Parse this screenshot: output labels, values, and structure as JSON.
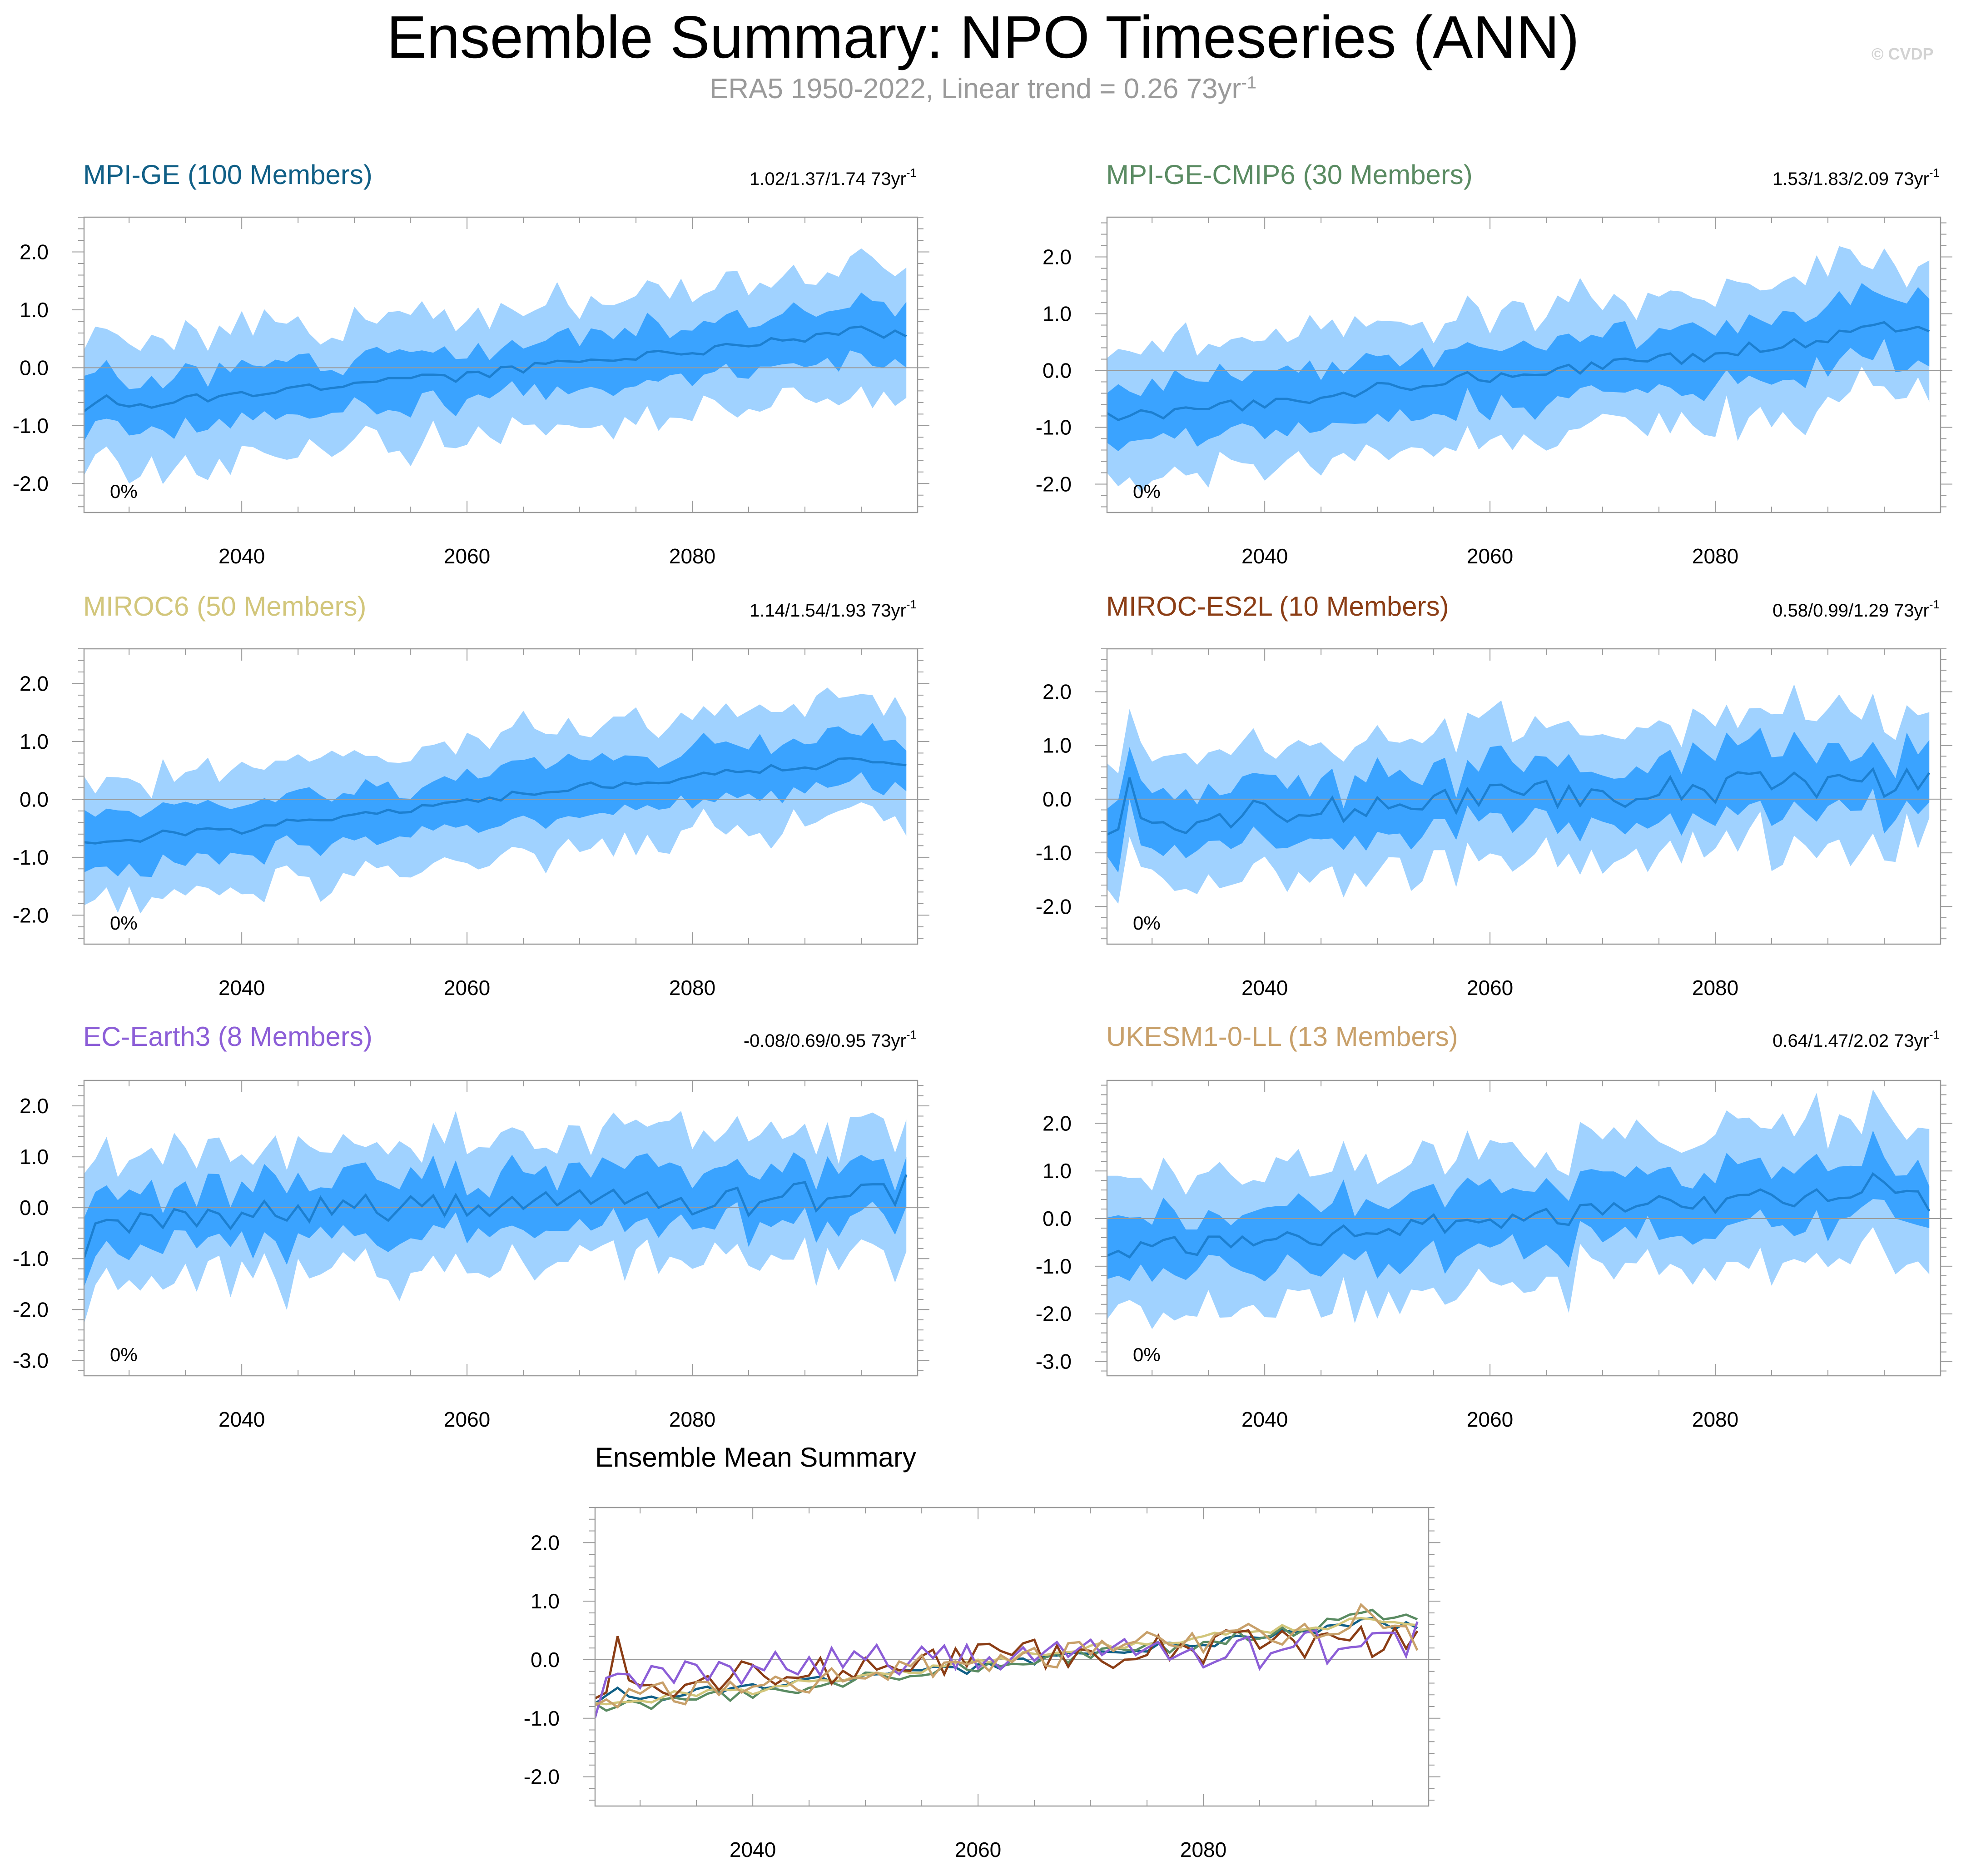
{
  "title": "Ensemble Summary: NPO Timeseries (ANN)",
  "subtitle": {
    "text": "ERA5 1950-2022, Linear trend = 0.26 73yr",
    "sup": "-1"
  },
  "watermark": "© CVDP",
  "colors": {
    "band_outer": "#a0d2ff",
    "band_inner": "#3aa3ff",
    "mean_line": "#1c7fd0",
    "zero_line": "#9a9a9a",
    "frame": "#9a9a9a"
  },
  "chart_data": [
    {
      "type": "area",
      "title": "MPI-GE (100 Members)",
      "title_color": "#105f86",
      "trend": "1.02/1.37/1.74 73yr",
      "trend_sup": "-1",
      "percent_label": "0%",
      "x_start": 2026,
      "x_end": 2099,
      "xlim": [
        2026,
        2100
      ],
      "ylim": [
        -2.5,
        2.6
      ],
      "x_ticks": [
        2040,
        2060,
        2080
      ],
      "y_ticks": [
        2.0,
        1.0,
        0.0,
        -1.0,
        -2.0
      ],
      "y_tick_labels": [
        "2.0",
        "1.0",
        "0.0",
        "-1.0",
        "-2.0"
      ],
      "mean_keys": [
        [
          2026,
          -0.7
        ],
        [
          2028,
          -0.5
        ],
        [
          2030,
          -0.65
        ],
        [
          2035,
          -0.55
        ],
        [
          2040,
          -0.45
        ],
        [
          2045,
          -0.35
        ],
        [
          2050,
          -0.25
        ],
        [
          2055,
          -0.2
        ],
        [
          2060,
          -0.15
        ],
        [
          2065,
          0.0
        ],
        [
          2070,
          0.1
        ],
        [
          2075,
          0.2
        ],
        [
          2080,
          0.25
        ],
        [
          2085,
          0.4
        ],
        [
          2090,
          0.5
        ],
        [
          2095,
          0.65
        ],
        [
          2099,
          0.55
        ]
      ],
      "noise": 0.08,
      "inner_half": 0.45,
      "outer_half": 1.1,
      "band_noise": 0.25,
      "seed": 3
    },
    {
      "type": "area",
      "title": "MPI-GE-CMIP6 (30 Members)",
      "title_color": "#5a8b62",
      "trend": "1.53/1.83/2.09 73yr",
      "trend_sup": "-1",
      "percent_label": "0%",
      "x_start": 2026,
      "x_end": 2099,
      "xlim": [
        2026,
        2100
      ],
      "ylim": [
        -2.5,
        2.7
      ],
      "x_ticks": [
        2040,
        2060,
        2080
      ],
      "y_ticks": [
        2.0,
        1.0,
        0.0,
        -1.0,
        -2.0
      ],
      "y_tick_labels": [
        "2.0",
        "1.0",
        "0.0",
        "-1.0",
        "-2.0"
      ],
      "mean_keys": [
        [
          2026,
          -0.85
        ],
        [
          2030,
          -0.75
        ],
        [
          2035,
          -0.65
        ],
        [
          2040,
          -0.55
        ],
        [
          2045,
          -0.45
        ],
        [
          2050,
          -0.3
        ],
        [
          2055,
          -0.2
        ],
        [
          2060,
          -0.1
        ],
        [
          2065,
          0.0
        ],
        [
          2070,
          0.1
        ],
        [
          2075,
          0.2
        ],
        [
          2080,
          0.3
        ],
        [
          2085,
          0.45
        ],
        [
          2090,
          0.55
        ],
        [
          2095,
          0.8
        ],
        [
          2099,
          0.7
        ]
      ],
      "noise": 0.12,
      "inner_half": 0.5,
      "outer_half": 1.15,
      "band_noise": 0.3,
      "seed": 11
    },
    {
      "type": "area",
      "title": "MIROC6 (50 Members)",
      "title_color": "#d2c67b",
      "trend": "1.14/1.54/1.93 73yr",
      "trend_sup": "-1",
      "percent_label": "0%",
      "x_start": 2026,
      "x_end": 2099,
      "xlim": [
        2026,
        2100
      ],
      "ylim": [
        -2.5,
        2.6
      ],
      "x_ticks": [
        2040,
        2060,
        2080
      ],
      "y_ticks": [
        2.0,
        1.0,
        0.0,
        -1.0,
        -2.0
      ],
      "y_tick_labels": [
        "2.0",
        "1.0",
        "0.0",
        "-1.0",
        "-2.0"
      ],
      "mean_keys": [
        [
          2026,
          -0.8
        ],
        [
          2030,
          -0.75
        ],
        [
          2033,
          -0.6
        ],
        [
          2040,
          -0.55
        ],
        [
          2045,
          -0.35
        ],
        [
          2050,
          -0.25
        ],
        [
          2055,
          -0.15
        ],
        [
          2060,
          -0.05
        ],
        [
          2065,
          0.1
        ],
        [
          2070,
          0.2
        ],
        [
          2075,
          0.3
        ],
        [
          2080,
          0.4
        ],
        [
          2085,
          0.5
        ],
        [
          2090,
          0.55
        ],
        [
          2095,
          0.7
        ],
        [
          2099,
          0.6
        ]
      ],
      "noise": 0.07,
      "inner_half": 0.45,
      "outer_half": 1.05,
      "band_noise": 0.25,
      "seed": 23
    },
    {
      "type": "area",
      "title": "MIROC-ES2L (10 Members)",
      "title_color": "#8b3d15",
      "trend": "0.58/0.99/1.29 73yr",
      "trend_sup": "-1",
      "percent_label": "0%",
      "x_start": 2026,
      "x_end": 2099,
      "xlim": [
        2026,
        2100
      ],
      "ylim": [
        -2.7,
        2.8
      ],
      "x_ticks": [
        2040,
        2060,
        2080
      ],
      "y_ticks": [
        2.0,
        1.0,
        0.0,
        -1.0,
        -2.0
      ],
      "y_tick_labels": [
        "2.0",
        "1.0",
        "0.0",
        "-1.0",
        "-2.0"
      ],
      "mean_keys": [
        [
          2026,
          -0.95
        ],
        [
          2028,
          0.2
        ],
        [
          2030,
          -0.6
        ],
        [
          2035,
          -0.4
        ],
        [
          2040,
          -0.3
        ],
        [
          2045,
          -0.2
        ],
        [
          2050,
          -0.15
        ],
        [
          2055,
          -0.1
        ],
        [
          2060,
          0.0
        ],
        [
          2065,
          0.05
        ],
        [
          2070,
          0.1
        ],
        [
          2075,
          0.15
        ],
        [
          2080,
          0.2
        ],
        [
          2085,
          0.3
        ],
        [
          2090,
          0.25
        ],
        [
          2095,
          0.3
        ],
        [
          2099,
          0.2
        ]
      ],
      "noise": 0.3,
      "inner_half": 0.55,
      "outer_half": 1.2,
      "band_noise": 0.35,
      "seed": 41
    },
    {
      "type": "area",
      "title": "EC-Earth3 (8 Members)",
      "title_color": "#8c5ed7",
      "trend": "-0.08/0.69/0.95 73yr",
      "trend_sup": "-1",
      "percent_label": "0%",
      "x_start": 2026,
      "x_end": 2099,
      "xlim": [
        2026,
        2100
      ],
      "ylim": [
        -3.3,
        2.5
      ],
      "x_ticks": [
        2040,
        2060,
        2080
      ],
      "y_ticks": [
        2.0,
        1.0,
        0.0,
        -1.0,
        -2.0,
        -3.0
      ],
      "y_tick_labels": [
        "2.0",
        "1.0",
        "0.0",
        "-1.0",
        "-2.0",
        "-3.0"
      ],
      "mean_keys": [
        [
          2026,
          -0.9
        ],
        [
          2028,
          -0.3
        ],
        [
          2035,
          -0.2
        ],
        [
          2040,
          -0.2
        ],
        [
          2045,
          -0.1
        ],
        [
          2050,
          -0.05
        ],
        [
          2055,
          0.0
        ],
        [
          2060,
          0.0
        ],
        [
          2065,
          0.05
        ],
        [
          2070,
          0.05
        ],
        [
          2075,
          0.1
        ],
        [
          2080,
          0.1
        ],
        [
          2085,
          0.15
        ],
        [
          2090,
          0.2
        ],
        [
          2095,
          0.3
        ],
        [
          2099,
          0.35
        ]
      ],
      "noise": 0.3,
      "inner_half": 0.55,
      "outer_half": 1.25,
      "band_noise": 0.4,
      "seed": 57
    },
    {
      "type": "area",
      "title": "UKESM1-0-LL (13 Members)",
      "title_color": "#c8a06a",
      "trend": "0.64/1.47/2.02 73yr",
      "trend_sup": "-1",
      "percent_label": "0%",
      "x_start": 2026,
      "x_end": 2099,
      "xlim": [
        2026,
        2100
      ],
      "ylim": [
        -3.3,
        2.9
      ],
      "x_ticks": [
        2040,
        2060,
        2080
      ],
      "y_ticks": [
        2.0,
        1.0,
        0.0,
        -1.0,
        -2.0,
        -3.0
      ],
      "y_tick_labels": [
        "2.0",
        "1.0",
        "0.0",
        "-1.0",
        "-2.0",
        "-3.0"
      ],
      "mean_keys": [
        [
          2026,
          -0.9
        ],
        [
          2030,
          -0.6
        ],
        [
          2035,
          -0.55
        ],
        [
          2040,
          -0.45
        ],
        [
          2045,
          -0.35
        ],
        [
          2050,
          -0.25
        ],
        [
          2055,
          -0.15
        ],
        [
          2060,
          -0.05
        ],
        [
          2065,
          0.05
        ],
        [
          2070,
          0.15
        ],
        [
          2075,
          0.25
        ],
        [
          2080,
          0.3
        ],
        [
          2085,
          0.4
        ],
        [
          2090,
          0.5
        ],
        [
          2095,
          0.8
        ],
        [
          2099,
          0.4
        ]
      ],
      "noise": 0.25,
      "inner_half": 0.6,
      "outer_half": 1.4,
      "band_noise": 0.4,
      "seed": 73
    },
    {
      "type": "line",
      "title": "Ensemble Mean Summary",
      "title_color": "#000000",
      "x_start": 2026,
      "x_end": 2099,
      "xlim": [
        2026,
        2100
      ],
      "ylim": [
        -2.5,
        2.6
      ],
      "x_ticks": [
        2040,
        2060,
        2080
      ],
      "y_ticks": [
        2.0,
        1.0,
        0.0,
        -1.0,
        -2.0
      ],
      "y_tick_labels": [
        "2.0",
        "1.0",
        "0.0",
        "-1.0",
        "-2.0"
      ],
      "series": [
        {
          "name": "MPI-GE",
          "color": "#105f86",
          "ref": 0
        },
        {
          "name": "MPI-GE-CMIP6",
          "color": "#5a8b62",
          "ref": 1
        },
        {
          "name": "MIROC6",
          "color": "#d2c67b",
          "ref": 2
        },
        {
          "name": "MIROC-ES2L",
          "color": "#8b3d15",
          "ref": 3
        },
        {
          "name": "EC-Earth3",
          "color": "#8c5ed7",
          "ref": 4
        },
        {
          "name": "UKESM1-0-LL",
          "color": "#c8a06a",
          "ref": 5
        }
      ]
    }
  ]
}
